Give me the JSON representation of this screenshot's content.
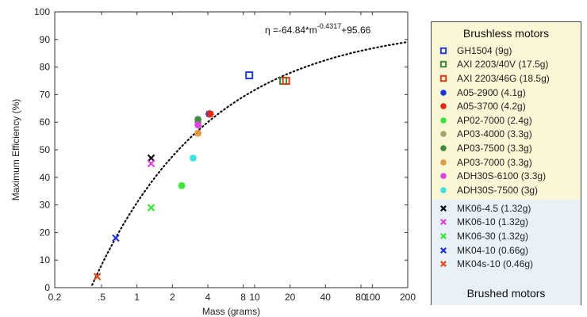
{
  "chart_data": {
    "type": "scatter",
    "title": "",
    "xlabel": "Mass (grams)",
    "ylabel": "Maximum Efficiency (%)",
    "xscale": "log",
    "xlim": [
      0.2,
      200
    ],
    "ylim": [
      0,
      100
    ],
    "xticks": [
      {
        "value": 0.2,
        "label": "0.2"
      },
      {
        "value": 0.5,
        "label": ".5"
      },
      {
        "value": 1,
        "label": "1"
      },
      {
        "value": 2,
        "label": "2"
      },
      {
        "value": 4,
        "label": "4"
      },
      {
        "value": 8,
        "label": "8"
      },
      {
        "value": 10,
        "label": "10"
      },
      {
        "value": 20,
        "label": "20"
      },
      {
        "value": 40,
        "label": "40"
      },
      {
        "value": 80,
        "label": "80"
      },
      {
        "value": 100,
        "label": "100"
      },
      {
        "value": 200,
        "label": "200"
      }
    ],
    "yticks": [
      0,
      10,
      20,
      30,
      40,
      50,
      60,
      70,
      80,
      90,
      100
    ],
    "fit": {
      "label": "Fit: η = -64.84·m^-0.4317 + 95.66",
      "equation_prefix": "η =-64.84*m",
      "equation_exponent": "-0.4317",
      "equation_suffix": "+95.66",
      "a": -64.84,
      "b": -0.4317,
      "c": 95.66,
      "x_range": [
        0.4,
        200
      ],
      "style": "dotted"
    },
    "series": [
      {
        "name": "GH1504 (9g)",
        "group": "brushless",
        "marker": "square",
        "color": "#1f3fd0",
        "x": 9,
        "y": 77
      },
      {
        "name": "AXI 2203/40V (17.5g)",
        "group": "brushless",
        "marker": "square",
        "color": "#3a8a3a",
        "x": 17.5,
        "y": 75
      },
      {
        "name": "AXI 2203/46G (18.5g)",
        "group": "brushless",
        "marker": "square",
        "color": "#e03a10",
        "x": 18.5,
        "y": 75
      },
      {
        "name": "A05-2900 (4.1g)",
        "group": "brushless",
        "marker": "asterisk",
        "color": "#2036d8",
        "x": 4.1,
        "y": 63
      },
      {
        "name": "A05-3700 (4.2g)",
        "group": "brushless",
        "marker": "asterisk",
        "color": "#e02a14",
        "x": 4.2,
        "y": 63
      },
      {
        "name": "AP02-7000 (2.4g)",
        "group": "brushless",
        "marker": "asterisk",
        "color": "#3ae63a",
        "x": 2.4,
        "y": 37
      },
      {
        "name": "AP03-4000 (3.3g)",
        "group": "brushless",
        "marker": "asterisk",
        "color": "#a6a070",
        "x": 3.3,
        "y": 60
      },
      {
        "name": "AP03-7500 (3.3g)",
        "group": "brushless",
        "marker": "asterisk",
        "color": "#3f8a3f",
        "x": 3.3,
        "y": 61
      },
      {
        "name": "AP03-7000 (3.3g)",
        "group": "brushless",
        "marker": "asterisk",
        "color": "#e09a40",
        "x": 3.3,
        "y": 56
      },
      {
        "name": "ADH30S-6100 (3.3g)",
        "group": "brushless",
        "marker": "asterisk",
        "color": "#e040e0",
        "x": 3.3,
        "y": 59
      },
      {
        "name": "ADH30S-7500 (3g)",
        "group": "brushless",
        "marker": "asterisk",
        "color": "#40e0e0",
        "x": 3.0,
        "y": 47
      },
      {
        "name": "MK06-4.5 (1.32g)",
        "group": "brushed",
        "marker": "x",
        "color": "#111111",
        "x": 1.32,
        "y": 47
      },
      {
        "name": "MK06-10 (1.32g)",
        "group": "brushed",
        "marker": "x",
        "color": "#e040e0",
        "x": 1.32,
        "y": 45
      },
      {
        "name": "MK06-30 (1.32g)",
        "group": "brushed",
        "marker": "x",
        "color": "#3ae63a",
        "x": 1.32,
        "y": 29
      },
      {
        "name": "MK04-10 (0.66g)",
        "group": "brushed",
        "marker": "x",
        "color": "#2036d8",
        "x": 0.66,
        "y": 18
      },
      {
        "name": "MK04s-10 (0.46g)",
        "group": "brushed",
        "marker": "x",
        "color": "#e04a20",
        "x": 0.46,
        "y": 4
      }
    ]
  },
  "legend": {
    "brushless_title": "Brushless motors",
    "brushed_title": "Brushed motors"
  }
}
